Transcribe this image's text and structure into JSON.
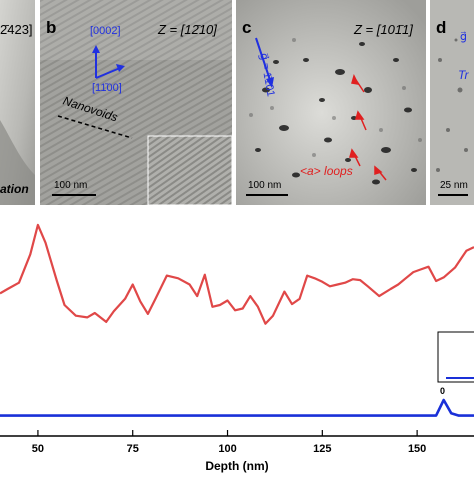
{
  "figure": {
    "panels": [
      {
        "id": "a",
        "zone_axis": "2̄423]",
        "caption": "ation"
      },
      {
        "id": "b",
        "letter": "b",
        "zone_axis": "Z = [12̄10]",
        "dir_up": "[0002]",
        "dir_right": "[11̄00]",
        "feature": "Nanovoids",
        "scale": "100 nm"
      },
      {
        "id": "c",
        "letter": "c",
        "zone_axis": "Z = [101̄1]",
        "g_vector": "g⃗ = 1̄101",
        "feature": "<a> loops",
        "scale": "100 nm"
      },
      {
        "id": "d",
        "letter": "d",
        "g_vector": "g⃗",
        "feature": "Tr",
        "scale": "25 nm"
      }
    ]
  },
  "chart_data": {
    "type": "line",
    "xlabel": "Depth (nm)",
    "ylabel": "",
    "xlim": [
      40,
      165
    ],
    "x_ticks": [
      50,
      75,
      100,
      125,
      150
    ],
    "grid": false,
    "series": [
      {
        "color": "#e04848",
        "x": [
          40,
          42,
          45,
          48,
          50,
          52,
          55,
          57,
          60,
          63,
          65,
          68,
          70,
          73,
          75,
          77,
          79,
          81,
          84,
          87,
          90,
          92,
          94,
          96,
          98,
          100,
          102,
          104,
          106,
          108,
          110,
          112,
          115,
          117,
          119,
          121,
          123,
          125,
          127,
          129,
          131,
          133,
          135,
          137,
          140,
          143,
          145,
          147,
          149,
          151,
          153,
          155,
          157,
          160,
          163,
          165
        ],
        "y": [
          1.58,
          1.63,
          1.7,
          2.02,
          2.35,
          2.15,
          1.72,
          1.45,
          1.33,
          1.31,
          1.36,
          1.26,
          1.38,
          1.52,
          1.68,
          1.49,
          1.35,
          1.52,
          1.78,
          1.75,
          1.68,
          1.55,
          1.79,
          1.43,
          1.45,
          1.5,
          1.39,
          1.41,
          1.55,
          1.43,
          1.24,
          1.33,
          1.6,
          1.46,
          1.52,
          1.78,
          1.75,
          1.71,
          1.66,
          1.68,
          1.7,
          1.74,
          1.73,
          1.66,
          1.55,
          1.63,
          1.68,
          1.75,
          1.82,
          1.85,
          1.88,
          1.72,
          1.76,
          1.87,
          2.06,
          2.1
        ]
      },
      {
        "color": "#1a30d8",
        "x": [
          40,
          150,
          153,
          155,
          157,
          159,
          161,
          163,
          165
        ],
        "y": [
          0.02,
          0.02,
          0.02,
          0.02,
          0.15,
          0.04,
          0.02,
          0.02,
          0.02
        ]
      }
    ],
    "inset": {
      "x_tick": "0"
    }
  }
}
